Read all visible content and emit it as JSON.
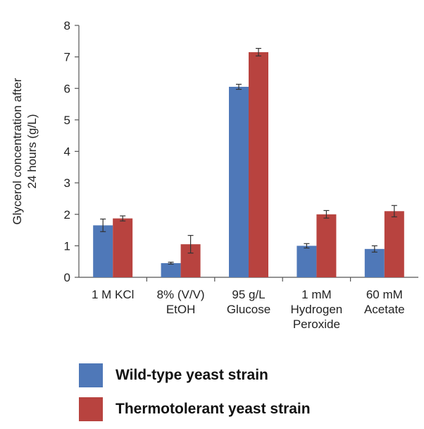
{
  "chart_data": {
    "type": "bar",
    "categories": [
      [
        "1 M KCl"
      ],
      [
        "8% (V/V)",
        "EtOH"
      ],
      [
        "95 g/L",
        "Glucose"
      ],
      [
        "1 mM",
        "Hydrogen",
        "Peroxide"
      ],
      [
        "60 mM",
        "Acetate"
      ]
    ],
    "series": [
      {
        "name": "Wild-type yeast strain",
        "color": "#4f78b8",
        "values": [
          1.65,
          0.45,
          6.05,
          1.0,
          0.9
        ],
        "errors": [
          0.2,
          0.03,
          0.08,
          0.07,
          0.1
        ]
      },
      {
        "name": "Thermotolerant yeast strain",
        "color": "#b8433f",
        "values": [
          1.87,
          1.05,
          7.15,
          2.0,
          2.1
        ],
        "errors": [
          0.08,
          0.28,
          0.12,
          0.12,
          0.18
        ]
      }
    ],
    "ylabel": [
      "Glycerol concentration after",
      "24 hours (g/L)"
    ],
    "ylim": [
      0,
      8
    ],
    "yticks": [
      0,
      1,
      2,
      3,
      4,
      5,
      6,
      7,
      8
    ],
    "grid": false,
    "legend_position": "bottom"
  }
}
